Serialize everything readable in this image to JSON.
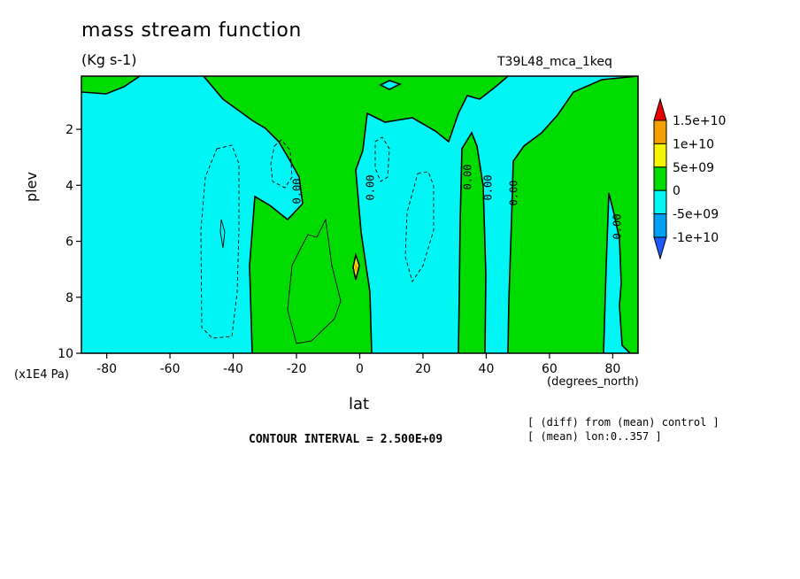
{
  "chart_data": {
    "type": "contour",
    "title": "mass stream function",
    "units": "(Kg s-1)",
    "run_label": "T39L48_mca_1keq",
    "xlabel": "lat",
    "ylabel": "plev",
    "x_units": "(degrees_north)",
    "y_units": "(x1E4 Pa)",
    "x_ticks": [
      -80,
      -60,
      -40,
      -20,
      0,
      20,
      40,
      60,
      80
    ],
    "y_ticks": [
      2,
      4,
      6,
      8,
      10
    ],
    "xlim": [
      -88,
      88
    ],
    "ylim": [
      0.1,
      10
    ],
    "y_inverted": true,
    "contour_interval": "CONTOUR INTERVAL = 2.500E+09",
    "contour_labels": [
      "0.00",
      "0.00",
      "0.00",
      "0.00",
      "0.00",
      "0.00"
    ],
    "notes": [
      "[ (diff) from (mean) control ]",
      "[ (mean) lon:0..357 ]"
    ],
    "colorbar": {
      "levels": [
        "1.5e+10",
        "1e+10",
        "5e+09",
        "0",
        "-5e+09",
        "-1e+10"
      ],
      "colors": [
        "#e80000",
        "#f5a000",
        "#f5f500",
        "#00dc00",
        "#00f5f5",
        "#00a0f5",
        "#1e5aff"
      ]
    }
  }
}
